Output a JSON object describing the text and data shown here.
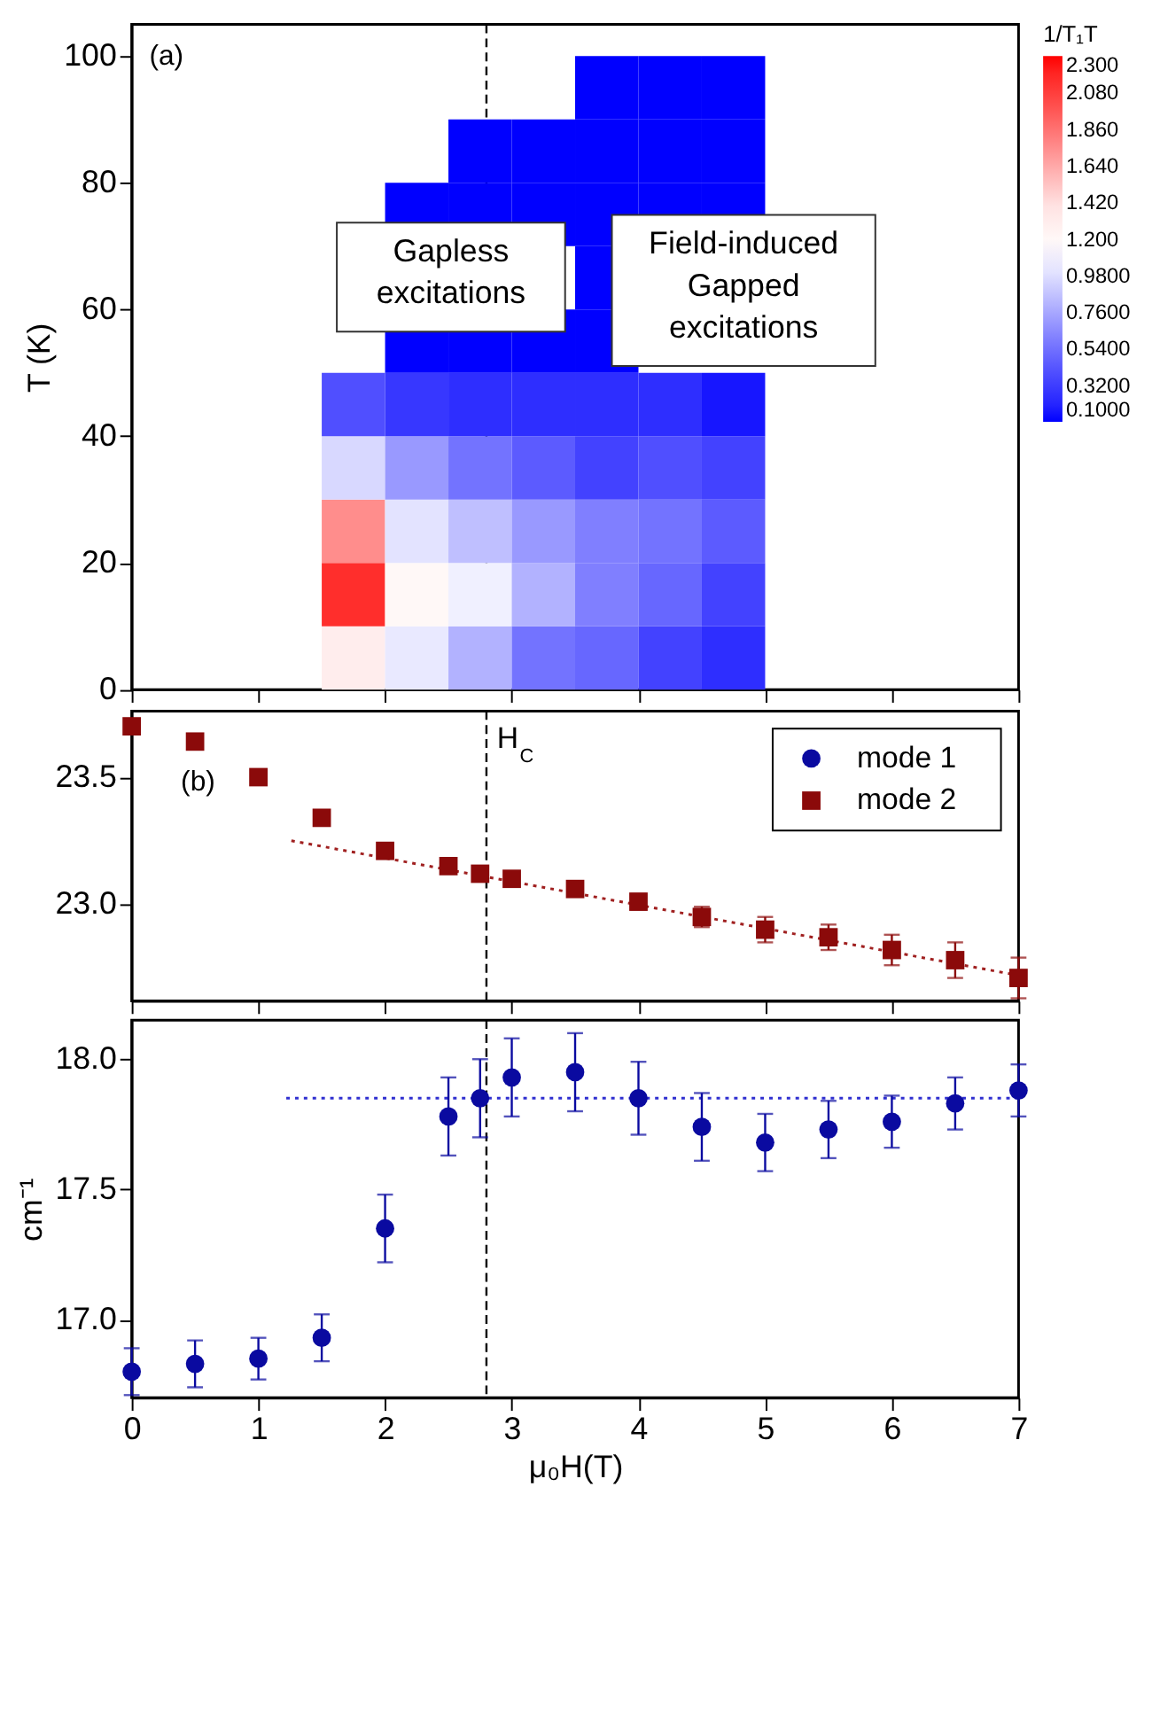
{
  "chart_data": [
    {
      "type": "scatter",
      "ylabel": "T (K)",
      "clabel": "1/T₁T",
      "annotations": [
        "(a)",
        "Gapless excitations",
        "Field-induced Gapped excitations"
      ],
      "tick_labels": "y",
      "series": [
        {
          "marker": "square",
          "x": [
            1.75,
            1.75,
            1.75,
            1.75,
            1.75,
            2.25,
            2.25,
            2.25,
            2.25,
            2.25,
            2.25,
            2.25,
            2.75,
            2.75,
            2.75,
            2.75,
            2.75,
            2.75,
            2.75,
            2.75,
            3.25,
            3.25,
            3.25,
            3.25,
            3.25,
            3.25,
            3.25,
            3.25,
            3.75,
            3.75,
            3.75,
            3.75,
            3.75,
            3.75,
            3.75,
            3.75,
            3.75,
            3.75,
            4.25,
            4.25,
            4.25,
            4.25,
            4.25,
            4.25,
            4.25,
            4.25,
            4.75,
            4.75,
            4.75,
            4.75,
            4.75,
            4.75,
            4.75,
            4.75
          ],
          "values": [
            5,
            15,
            25,
            35,
            45,
            5,
            15,
            25,
            35,
            45,
            55,
            75,
            5,
            15,
            25,
            35,
            45,
            55,
            75,
            85,
            5,
            15,
            25,
            35,
            45,
            55,
            75,
            85,
            5,
            15,
            25,
            35,
            45,
            55,
            65,
            75,
            85,
            95,
            5,
            15,
            25,
            35,
            45,
            75,
            85,
            95,
            5,
            15,
            25,
            35,
            45,
            75,
            85,
            95
          ],
          "cvalues": [
            1.3,
            2.15,
            1.75,
            0.95,
            0.4,
            1.05,
            1.2,
            1.0,
            0.7,
            0.3,
            0.1,
            0.1,
            0.8,
            1.1,
            0.85,
            0.55,
            0.25,
            0.1,
            0.1,
            0.1,
            0.55,
            0.8,
            0.7,
            0.45,
            0.25,
            0.1,
            0.1,
            0.1,
            0.5,
            0.6,
            0.6,
            0.35,
            0.25,
            0.1,
            0.1,
            0.1,
            0.1,
            0.1,
            0.35,
            0.5,
            0.55,
            0.4,
            0.25,
            0.1,
            0.1,
            0.1,
            0.25,
            0.35,
            0.45,
            0.35,
            0.15,
            0.1,
            0.1,
            0.1
          ]
        }
      ],
      "clim": [
        0.1,
        2.3
      ],
      "cticks": [
        {
          "value": 0.1,
          "label": "0.1000"
        },
        {
          "value": 0.32,
          "label": "0.3200"
        },
        {
          "value": 0.54,
          "label": "0.5400"
        },
        {
          "value": 0.76,
          "label": "0.7600"
        },
        {
          "value": 0.98,
          "label": "0.9800"
        },
        {
          "value": 1.2,
          "label": "1.200"
        },
        {
          "value": 1.42,
          "label": "1.420"
        },
        {
          "value": 1.64,
          "label": "1.640"
        },
        {
          "value": 1.86,
          "label": "1.860"
        },
        {
          "value": 2.08,
          "label": "2.080"
        },
        {
          "value": 2.3,
          "label": "2.300"
        }
      ],
      "colors": [
        "#0000ff",
        "#3a3aff",
        "#7070ff",
        "#a8a8ff",
        "#e0e0ff",
        "#ffffff",
        "#ffe0e0",
        "#ffa8a8",
        "#ff7070",
        "#ff3a3a",
        "#ff0000"
      ],
      "xlim": [
        0,
        7
      ],
      "xticks": [
        0,
        1,
        2,
        3,
        4,
        5,
        6,
        7
      ],
      "ylim": [
        0,
        105
      ],
      "yticks": [
        0,
        20,
        40,
        60,
        80,
        100
      ],
      "ref_lines": [
        {
          "axis": "x",
          "value": 2.8,
          "line_style": "dashed",
          "color": "#000000"
        }
      ]
    },
    {
      "type": "scatter",
      "annotations": [
        "(b)"
      ],
      "legend": "top right",
      "tick_labels": "y",
      "series": [
        {
          "type": "line",
          "color": "#a02020",
          "line_style": "dotted",
          "marker": "none",
          "x": [
            1.26,
            7
          ],
          "values": [
            23.25,
            22.72
          ]
        },
        {
          "name": "mode 2",
          "color": "#8b0a0a",
          "marker": "square",
          "x": [
            0,
            0.5,
            1,
            1.5,
            2,
            2.5,
            2.75,
            3,
            3.5,
            4,
            4.5,
            5,
            5.5,
            6,
            6.5,
            7
          ],
          "values": [
            23.7,
            23.64,
            23.5,
            23.34,
            23.21,
            23.15,
            23.12,
            23.1,
            23.06,
            23.01,
            22.95,
            22.9,
            22.87,
            22.82,
            22.78,
            22.71
          ],
          "errors": [
            null,
            null,
            null,
            null,
            null,
            null,
            null,
            null,
            0.03,
            0.03,
            0.04,
            0.05,
            0.05,
            0.06,
            0.07,
            0.08
          ]
        }
      ],
      "xlim": [
        0,
        7
      ],
      "xticks": [
        0,
        1,
        2,
        3,
        4,
        5,
        6,
        7
      ],
      "ylim": [
        22.62,
        23.76
      ],
      "yticks": [
        {
          "value": 23,
          "label": "23.0"
        },
        {
          "value": 23.5,
          "label": "23.5"
        }
      ],
      "ref_lines": [
        {
          "axis": "x",
          "value": 2.8,
          "label": "H$_{C}$",
          "line_style": "dashed",
          "color": "#000000"
        }
      ]
    },
    {
      "type": "scatter",
      "xlabel": "μ₀H(T)",
      "ylabel": "cm⁻¹",
      "series": [
        {
          "type": "line",
          "color": "#3030d0",
          "line_style": "dotted",
          "marker": "none",
          "x": [
            1.22,
            7
          ],
          "values": [
            17.85,
            17.85
          ]
        },
        {
          "name": "mode 1",
          "color": "#0a0aa0",
          "marker": "circle",
          "x": [
            0,
            0.5,
            1,
            1.5,
            2,
            2.5,
            2.75,
            3,
            3.5,
            4,
            4.5,
            5,
            5.5,
            6,
            6.5,
            7
          ],
          "values": [
            16.8,
            16.83,
            16.85,
            16.93,
            17.35,
            17.78,
            17.85,
            17.93,
            17.95,
            17.85,
            17.74,
            17.68,
            17.73,
            17.76,
            17.83,
            17.88
          ],
          "errors": [
            0.09,
            0.09,
            0.08,
            0.09,
            0.13,
            0.15,
            0.15,
            0.15,
            0.15,
            0.14,
            0.13,
            0.11,
            0.11,
            0.1,
            0.1,
            0.1
          ]
        }
      ],
      "xlim": [
        0,
        7
      ],
      "xticks": [
        0,
        1,
        2,
        3,
        4,
        5,
        6,
        7
      ],
      "ylim": [
        16.7,
        18.15
      ],
      "yticks": [
        {
          "value": 17,
          "label": "17.0"
        },
        {
          "value": 17.5,
          "label": "17.5"
        },
        {
          "value": 18,
          "label": "18.0"
        }
      ],
      "ref_lines": [
        {
          "axis": "x",
          "value": 2.8,
          "line_style": "dashed",
          "color": "#000000"
        }
      ]
    }
  ]
}
